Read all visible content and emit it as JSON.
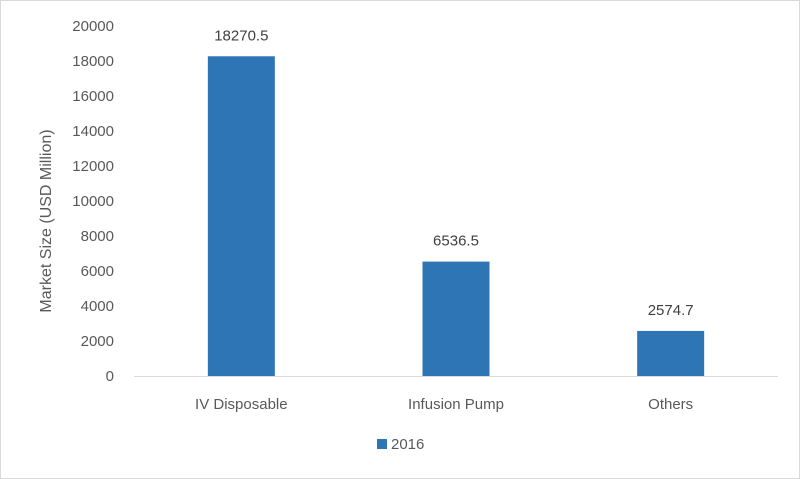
{
  "chart_data": {
    "type": "bar",
    "categories": [
      "IV Disposable",
      "Infusion Pump",
      "Others"
    ],
    "series": [
      {
        "name": "2016",
        "values": [
          18270.5,
          6536.5,
          2574.7
        ],
        "value_labels": [
          "18270.5",
          "6536.5",
          "2574.7"
        ],
        "color": "#2e75b6"
      }
    ],
    "ylabel": "Market Size (USD Million)",
    "xlabel": "",
    "ylim": [
      0,
      20000
    ],
    "yticks": [
      0,
      2000,
      4000,
      6000,
      8000,
      10000,
      12000,
      14000,
      16000,
      18000,
      20000
    ],
    "grid": false,
    "legend": "bottom",
    "axis_color": "#d9d9d9"
  }
}
